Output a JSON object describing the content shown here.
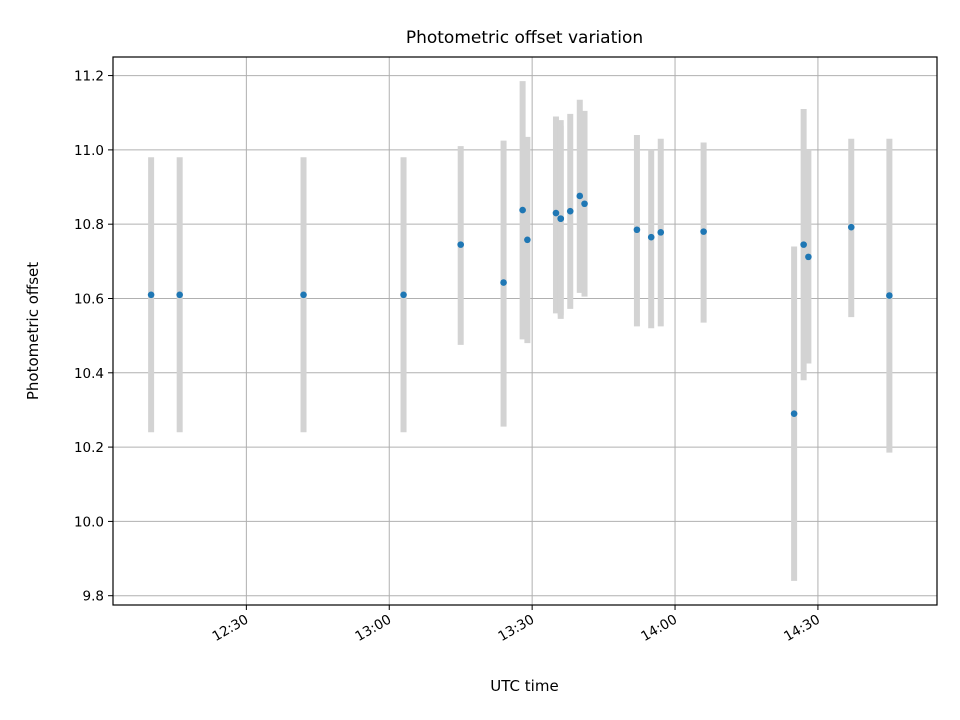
{
  "chart_data": {
    "type": "scatter",
    "title": "Photometric offset variation",
    "xlabel": "UTC time",
    "ylabel": "Photometric offset",
    "grid": true,
    "x_range": [
      "12:02",
      "14:55"
    ],
    "ylim": [
      9.775,
      11.25
    ],
    "x_ticks": [
      "12:30",
      "13:00",
      "13:30",
      "14:00",
      "14:30"
    ],
    "y_ticks": [
      "9.8",
      "10.0",
      "10.2",
      "10.4",
      "10.6",
      "10.8",
      "11.0",
      "11.2"
    ],
    "marker_color": "#1f77b4",
    "errorbar_color": "#d3d3d3",
    "points": [
      {
        "x": "12:10",
        "y": 10.61,
        "low": 10.24,
        "high": 10.98
      },
      {
        "x": "12:16",
        "y": 10.61,
        "low": 10.24,
        "high": 10.98
      },
      {
        "x": "12:42",
        "y": 10.61,
        "low": 10.24,
        "high": 10.98
      },
      {
        "x": "13:03",
        "y": 10.61,
        "low": 10.24,
        "high": 10.98
      },
      {
        "x": "13:15",
        "y": 10.745,
        "low": 10.475,
        "high": 11.01
      },
      {
        "x": "13:24",
        "y": 10.643,
        "low": 10.255,
        "high": 11.025
      },
      {
        "x": "13:28",
        "y": 10.838,
        "low": 10.49,
        "high": 11.185
      },
      {
        "x": "13:29",
        "y": 10.758,
        "low": 10.48,
        "high": 11.035
      },
      {
        "x": "13:35",
        "y": 10.83,
        "low": 10.56,
        "high": 11.09
      },
      {
        "x": "13:36",
        "y": 10.815,
        "low": 10.545,
        "high": 11.08
      },
      {
        "x": "13:36",
        "y": 10.815,
        "low": 10.555,
        "high": 11.065
      },
      {
        "x": "13:38",
        "y": 10.835,
        "low": 10.572,
        "high": 11.097
      },
      {
        "x": "13:40",
        "y": 10.876,
        "low": 10.615,
        "high": 11.135
      },
      {
        "x": "13:41",
        "y": 10.855,
        "low": 10.605,
        "high": 11.105
      },
      {
        "x": "13:52",
        "y": 10.785,
        "low": 10.525,
        "high": 11.04
      },
      {
        "x": "13:55",
        "y": 10.765,
        "low": 10.52,
        "high": 11.0
      },
      {
        "x": "13:57",
        "y": 10.778,
        "low": 10.525,
        "high": 11.03
      },
      {
        "x": "14:06",
        "y": 10.78,
        "low": 10.535,
        "high": 11.02
      },
      {
        "x": "14:25",
        "y": 10.29,
        "low": 9.84,
        "high": 10.74
      },
      {
        "x": "14:27",
        "y": 10.745,
        "low": 10.38,
        "high": 11.11
      },
      {
        "x": "14:28",
        "y": 10.712,
        "low": 10.425,
        "high": 11.0
      },
      {
        "x": "14:37",
        "y": 10.792,
        "low": 10.55,
        "high": 11.03
      },
      {
        "x": "14:45",
        "y": 10.608,
        "low": 10.185,
        "high": 11.03
      }
    ]
  }
}
